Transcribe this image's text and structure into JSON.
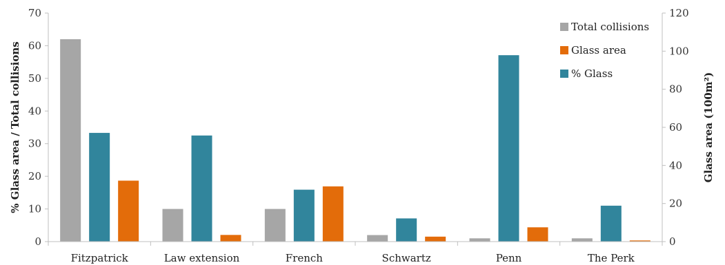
{
  "chart_data": {
    "type": "bar",
    "categories": [
      "Fitzpatrick",
      "Law extension",
      "French",
      "Schwartz",
      "Penn",
      "The Perk"
    ],
    "series": [
      {
        "name": "Total collisions",
        "axis": "left",
        "color": "#a6a6a6",
        "values": [
          62,
          10,
          10,
          2,
          1,
          1
        ]
      },
      {
        "name": "% Glass",
        "axis": "left",
        "color": "#31859c",
        "values": [
          33.3,
          32.5,
          15.9,
          7.1,
          57.1,
          11
        ]
      },
      {
        "name": "Glass area",
        "axis": "right",
        "color": "#e36c0a",
        "values": [
          32,
          3.5,
          29,
          2.6,
          7.5,
          0.6
        ]
      }
    ],
    "ylabel": "% Glass area / Total collisions",
    "y2label": "Glass area (100m²)",
    "ylim": [
      0,
      70
    ],
    "y2lim": [
      0,
      120
    ],
    "yticks": [
      "0",
      "10",
      "20",
      "30",
      "40",
      "50",
      "60",
      "70"
    ],
    "y2ticks": [
      "0",
      "20",
      "40",
      "60",
      "80",
      "100",
      "120"
    ],
    "legend": {
      "position": "top-right",
      "items": [
        {
          "label": "Total collisions",
          "color": "#a6a6a6"
        },
        {
          "label": "Glass area",
          "color": "#e36c0a"
        },
        {
          "label": "% Glass",
          "color": "#31859c"
        }
      ]
    },
    "grid": false
  }
}
